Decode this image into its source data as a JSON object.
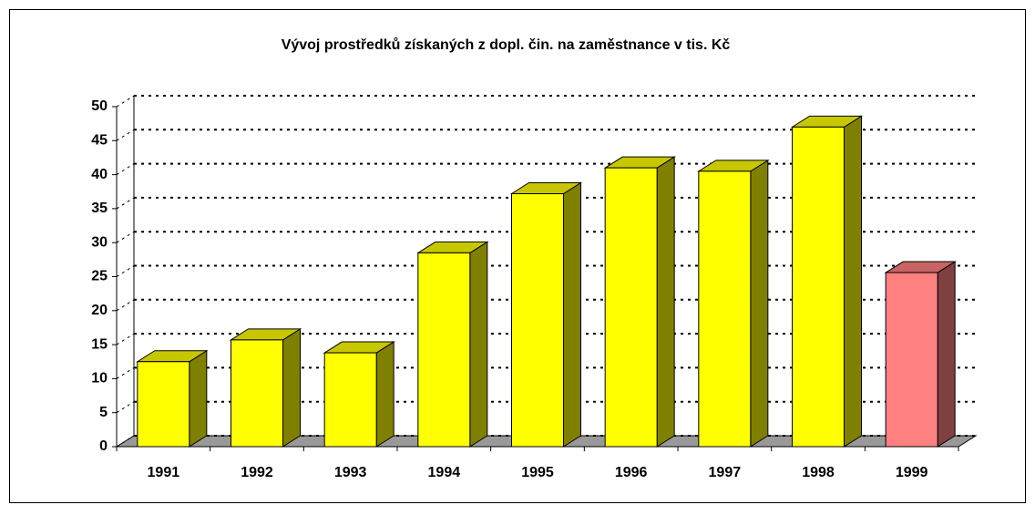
{
  "chart_data": {
    "type": "bar3d",
    "title": "Vývoj prostředků získaných z dopl. čin. na zaměstnance v tis. Kč",
    "categories": [
      "1991",
      "1992",
      "1993",
      "1994",
      "1995",
      "1996",
      "1997",
      "1998",
      "1999"
    ],
    "values": [
      12.5,
      15.7,
      13.8,
      28.5,
      37.2,
      41,
      40.5,
      47,
      25.6
    ],
    "colors": [
      "#ffff00",
      "#ffff00",
      "#ffff00",
      "#ffff00",
      "#ffff00",
      "#ffff00",
      "#ffff00",
      "#ffff00",
      "#ff8080"
    ],
    "ylim": [
      0,
      50
    ],
    "yticks": [
      0,
      5,
      10,
      15,
      20,
      25,
      30,
      35,
      40,
      45,
      50
    ],
    "grid": true
  }
}
